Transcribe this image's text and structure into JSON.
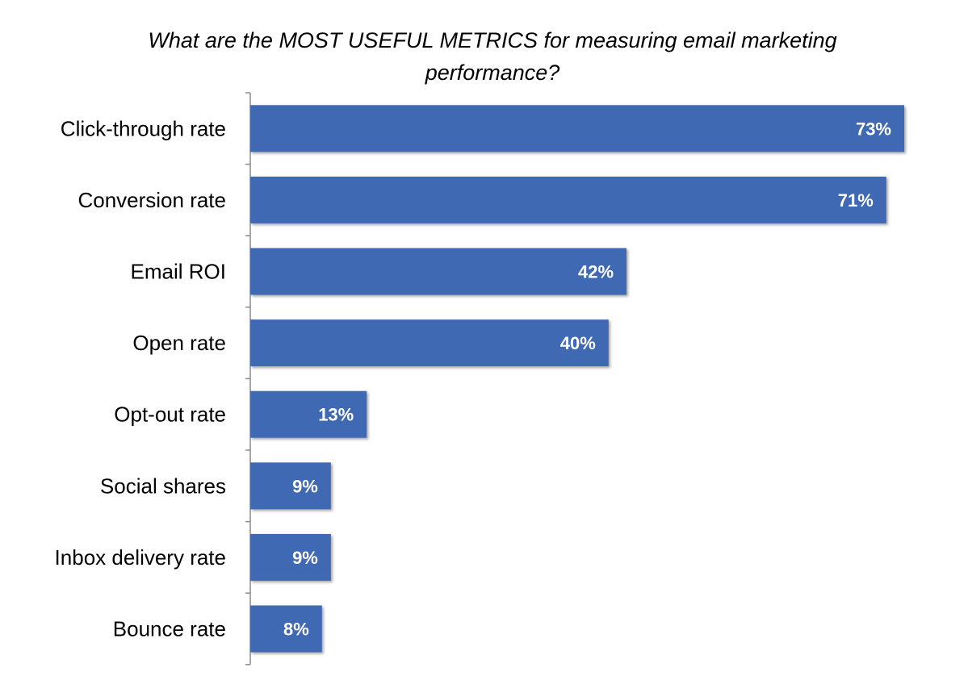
{
  "chart_data": {
    "type": "bar",
    "orientation": "horizontal",
    "title": "What are the MOST USEFUL METRICS for measuring email marketing performance?",
    "categories": [
      "Click-through rate",
      "Conversion rate",
      "Email ROI",
      "Open rate",
      "Opt-out rate",
      "Social shares",
      "Inbox delivery rate",
      "Bounce rate"
    ],
    "values": [
      73,
      71,
      42,
      40,
      13,
      9,
      9,
      8
    ],
    "value_labels": [
      "73%",
      "71%",
      "42%",
      "40%",
      "13%",
      "9%",
      "9%",
      "8%"
    ],
    "xlim": [
      0,
      73
    ],
    "grid": false,
    "bar_color": "#4169B3",
    "label_color": "#ffffff"
  }
}
